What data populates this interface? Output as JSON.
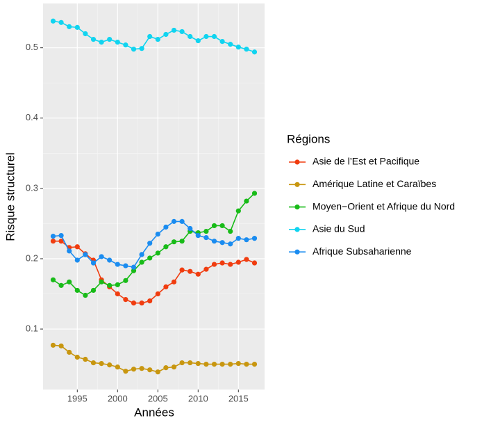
{
  "chart_data": {
    "type": "line",
    "x_label": "Années",
    "y_label": "Risque structurel",
    "legend_title": "Régions",
    "x": [
      1992,
      1993,
      1994,
      1995,
      1996,
      1997,
      1998,
      1999,
      2000,
      2001,
      2002,
      2003,
      2004,
      2005,
      2006,
      2007,
      2008,
      2009,
      2010,
      2011,
      2012,
      2013,
      2014,
      2015,
      2016,
      2017
    ],
    "series": [
      {
        "name": "Asie de l’Est et Pacifique",
        "color": "#f03c0f",
        "values": [
          0.225,
          0.225,
          0.216,
          0.217,
          0.207,
          0.198,
          0.17,
          0.16,
          0.15,
          0.142,
          0.137,
          0.137,
          0.14,
          0.15,
          0.16,
          0.167,
          0.184,
          0.182,
          0.178,
          0.185,
          0.192,
          0.194,
          0.192,
          0.195,
          0.199,
          0.194
        ]
      },
      {
        "name": "Amérique Latine et Caraïbes",
        "color": "#c8960f",
        "values": [
          0.077,
          0.076,
          0.067,
          0.06,
          0.057,
          0.052,
          0.051,
          0.049,
          0.046,
          0.04,
          0.043,
          0.044,
          0.042,
          0.039,
          0.045,
          0.046,
          0.052,
          0.052,
          0.051,
          0.05,
          0.05,
          0.05,
          0.05,
          0.051,
          0.05,
          0.05
        ]
      },
      {
        "name": "Moyen−Orient et Afrique du Nord",
        "color": "#18bb18",
        "values": [
          0.17,
          0.162,
          0.167,
          0.155,
          0.148,
          0.155,
          0.167,
          0.162,
          0.163,
          0.169,
          0.183,
          0.195,
          0.201,
          0.208,
          0.217,
          0.224,
          0.225,
          0.239,
          0.237,
          0.239,
          0.247,
          0.247,
          0.239,
          0.268,
          0.282,
          0.293
        ]
      },
      {
        "name": "Asie du Sud",
        "color": "#10d4f0",
        "values": [
          0.538,
          0.536,
          0.53,
          0.529,
          0.52,
          0.512,
          0.508,
          0.512,
          0.508,
          0.504,
          0.498,
          0.499,
          0.516,
          0.512,
          0.519,
          0.525,
          0.523,
          0.516,
          0.51,
          0.516,
          0.516,
          0.509,
          0.505,
          0.501,
          0.498,
          0.494
        ]
      },
      {
        "name": "Afrique Subsaharienne",
        "color": "#1a8cf0",
        "values": [
          0.232,
          0.233,
          0.211,
          0.198,
          0.206,
          0.194,
          0.203,
          0.198,
          0.192,
          0.19,
          0.188,
          0.206,
          0.222,
          0.235,
          0.245,
          0.253,
          0.253,
          0.243,
          0.233,
          0.23,
          0.225,
          0.223,
          0.221,
          0.229,
          0.227,
          0.229
        ]
      }
    ],
    "xlim": [
      1990.75,
      2018.25
    ],
    "xticks": [
      1995,
      2000,
      2005,
      2010,
      2015
    ],
    "ylim": [
      0.014,
      0.563
    ],
    "yticks": [
      0.1,
      0.2,
      0.3,
      0.4,
      0.5
    ],
    "grid": true,
    "legend_position": "right"
  }
}
